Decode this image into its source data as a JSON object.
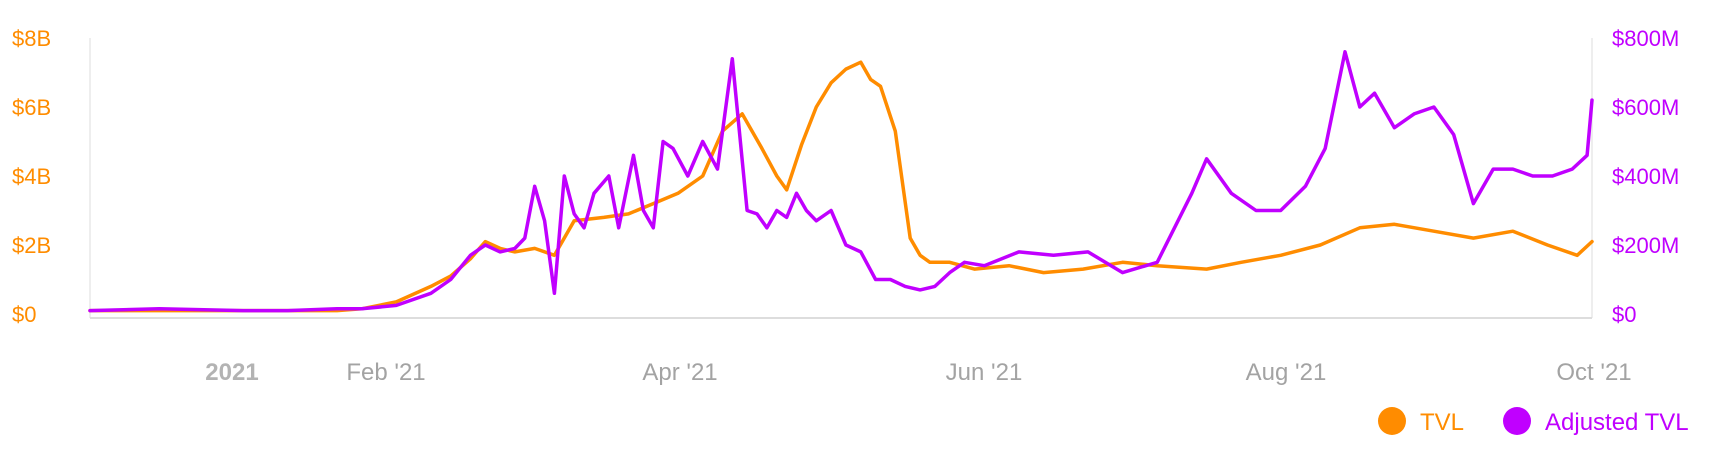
{
  "chart_data": {
    "type": "line",
    "title": "",
    "x_ticks": [
      "2021",
      "Feb '21",
      "Apr '21",
      "Jun '21",
      "Aug '21",
      "Oct '21"
    ],
    "y_left": {
      "ticks": [
        "$0",
        "$2B",
        "$4B",
        "$6B",
        "$8B"
      ],
      "ylim": [
        0,
        8000000000
      ]
    },
    "y_right": {
      "ticks": [
        "$0",
        "$200M",
        "$400M",
        "$600M",
        "$800M"
      ],
      "ylim": [
        0,
        800000000
      ]
    },
    "xlim": [
      "2020-12-01",
      "2021-10-01"
    ],
    "grid": false,
    "legend_position": "bottom-right",
    "series": [
      {
        "name": "TVL",
        "axis": "left",
        "color": "#FF8C00",
        "x": [
          "2020-12-01",
          "2020-12-15",
          "2021-01-01",
          "2021-01-10",
          "2021-01-20",
          "2021-01-25",
          "2021-02-01",
          "2021-02-08",
          "2021-02-12",
          "2021-02-16",
          "2021-02-19",
          "2021-02-22",
          "2021-02-25",
          "2021-03-01",
          "2021-03-05",
          "2021-03-09",
          "2021-03-15",
          "2021-03-20",
          "2021-03-25",
          "2021-03-30",
          "2021-04-04",
          "2021-04-08",
          "2021-04-12",
          "2021-04-16",
          "2021-04-19",
          "2021-04-21",
          "2021-04-24",
          "2021-04-27",
          "2021-04-30",
          "2021-05-03",
          "2021-05-06",
          "2021-05-08",
          "2021-05-10",
          "2021-05-13",
          "2021-05-16",
          "2021-05-18",
          "2021-05-20",
          "2021-05-24",
          "2021-05-29",
          "2021-06-05",
          "2021-06-12",
          "2021-06-20",
          "2021-06-28",
          "2021-07-05",
          "2021-07-15",
          "2021-07-22",
          "2021-07-30",
          "2021-08-07",
          "2021-08-15",
          "2021-08-22",
          "2021-08-30",
          "2021-09-07",
          "2021-09-15",
          "2021-09-22",
          "2021-09-28",
          "2021-10-01"
        ],
        "values": [
          0.1,
          0.1,
          0.1,
          0.1,
          0.1,
          0.15,
          0.35,
          0.8,
          1.1,
          1.6,
          2.1,
          1.9,
          1.8,
          1.9,
          1.7,
          2.7,
          2.8,
          2.9,
          3.2,
          3.5,
          4.0,
          5.3,
          5.8,
          4.8,
          4.0,
          3.6,
          4.9,
          6.0,
          6.7,
          7.1,
          7.3,
          6.8,
          6.6,
          5.3,
          2.2,
          1.7,
          1.5,
          1.5,
          1.3,
          1.4,
          1.2,
          1.3,
          1.5,
          1.4,
          1.3,
          1.5,
          1.7,
          2.0,
          2.5,
          2.6,
          2.4,
          2.2,
          2.4,
          2.0,
          1.7,
          2.1
        ]
      },
      {
        "name": "Adjusted TVL",
        "axis": "right",
        "color": "#C000FF",
        "x": [
          "2020-12-01",
          "2020-12-15",
          "2021-01-01",
          "2021-01-10",
          "2021-01-20",
          "2021-01-25",
          "2021-02-01",
          "2021-02-08",
          "2021-02-12",
          "2021-02-16",
          "2021-02-19",
          "2021-02-22",
          "2021-02-25",
          "2021-02-27",
          "2021-03-01",
          "2021-03-03",
          "2021-03-05",
          "2021-03-07",
          "2021-03-09",
          "2021-03-11",
          "2021-03-13",
          "2021-03-16",
          "2021-03-18",
          "2021-03-21",
          "2021-03-23",
          "2021-03-25",
          "2021-03-27",
          "2021-03-29",
          "2021-04-01",
          "2021-04-04",
          "2021-04-07",
          "2021-04-10",
          "2021-04-13",
          "2021-04-15",
          "2021-04-17",
          "2021-04-19",
          "2021-04-21",
          "2021-04-23",
          "2021-04-25",
          "2021-04-27",
          "2021-04-30",
          "2021-05-03",
          "2021-05-06",
          "2021-05-09",
          "2021-05-12",
          "2021-05-15",
          "2021-05-18",
          "2021-05-21",
          "2021-05-24",
          "2021-05-27",
          "2021-05-31",
          "2021-06-07",
          "2021-06-14",
          "2021-06-21",
          "2021-06-28",
          "2021-07-05",
          "2021-07-12",
          "2021-07-15",
          "2021-07-20",
          "2021-07-25",
          "2021-07-30",
          "2021-08-04",
          "2021-08-08",
          "2021-08-12",
          "2021-08-15",
          "2021-08-18",
          "2021-08-22",
          "2021-08-26",
          "2021-08-30",
          "2021-09-03",
          "2021-09-07",
          "2021-09-11",
          "2021-09-15",
          "2021-09-19",
          "2021-09-23",
          "2021-09-27",
          "2021-09-30",
          "2021-10-01"
        ],
        "values": [
          10,
          15,
          10,
          10,
          15,
          15,
          25,
          60,
          100,
          170,
          200,
          180,
          190,
          220,
          370,
          270,
          60,
          400,
          290,
          250,
          350,
          400,
          250,
          460,
          300,
          250,
          500,
          480,
          400,
          500,
          420,
          740,
          300,
          290,
          250,
          300,
          280,
          350,
          300,
          270,
          300,
          200,
          180,
          100,
          100,
          80,
          70,
          80,
          120,
          150,
          140,
          180,
          170,
          180,
          120,
          150,
          350,
          450,
          350,
          300,
          300,
          370,
          480,
          760,
          600,
          640,
          540,
          580,
          600,
          520,
          320,
          420,
          420,
          400,
          400,
          420,
          460,
          620
        ]
      }
    ]
  },
  "legend": {
    "items": [
      {
        "label": "TVL",
        "color": "#FF8C00"
      },
      {
        "label": "Adjusted TVL",
        "color": "#C000FF"
      }
    ]
  }
}
